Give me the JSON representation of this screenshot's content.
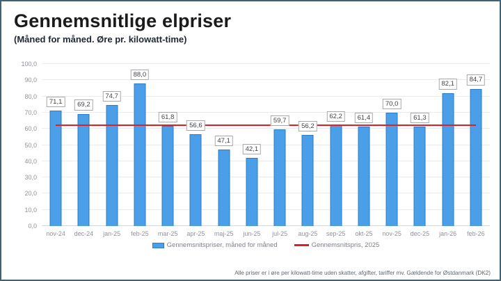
{
  "header": {
    "title": "Gennemsnitlige elpriser",
    "subtitle": "(Måned for måned. Øre pr. kilowatt-time)"
  },
  "chart_data": {
    "type": "bar",
    "title": "Gennemsnitlige elpriser",
    "subtitle": "(Måned for måned. Øre pr. kilowatt-time)",
    "categories": [
      "nov-24",
      "dec-24",
      "jan-25",
      "feb-25",
      "mar-25",
      "apr-25",
      "maj-25",
      "jun-25",
      "jul-25",
      "aug-25",
      "sep-25",
      "okt-25",
      "nov-25",
      "dec-25",
      "jan-26",
      "feb-26"
    ],
    "series": [
      {
        "name": "Gennemsnitspriser, måned for måned",
        "type": "bar",
        "values": [
          71.1,
          69.2,
          74.7,
          88.0,
          61.8,
          56.6,
          47.1,
          42.1,
          59.7,
          56.2,
          62.2,
          61.4,
          70.0,
          61.3,
          82.1,
          84.7
        ],
        "value_labels": [
          "71,1",
          "69,2",
          "74,7",
          "88,0",
          "61,8",
          "56,6",
          "47,1",
          "42,1",
          "59,7",
          "56,2",
          "62,2",
          "61,4",
          "70,0",
          "61,3",
          "82,1",
          "84,7"
        ],
        "fill_color": "#4A9FE8",
        "border_color": "#2B7CC5"
      },
      {
        "name": "Gennemsnitspris, 2025",
        "type": "line",
        "value": 61.8,
        "color": "#E02020",
        "extent": "center of first bar to center of last bar"
      }
    ],
    "ylim": [
      0,
      100
    ],
    "yticks": [
      {
        "v": 100,
        "label": "100,0"
      },
      {
        "v": 90,
        "label": "90,0"
      },
      {
        "v": 80,
        "label": "80,0"
      },
      {
        "v": 70,
        "label": "70,0"
      },
      {
        "v": 60,
        "label": "60,0"
      },
      {
        "v": 50,
        "label": "50,0"
      },
      {
        "v": 40,
        "label": "40,0"
      },
      {
        "v": 30,
        "label": "30,0"
      },
      {
        "v": 20,
        "label": "20,0"
      },
      {
        "v": 10,
        "label": "10,0"
      },
      {
        "v": 0,
        "label": "0,0"
      }
    ],
    "grid": "horizontal",
    "legend_position": "bottom-center",
    "value_labels_in_boxes": true
  },
  "footer": {
    "note": "Alle priser er i øre per kilowatt-time uden skatter, afgifter, tariffer mv. Gældende for Østdanmark (DK2)"
  },
  "colors": {
    "card_border": "#3D6374",
    "bar_fill": "#4A9FE8",
    "bar_border": "#2B7CC5",
    "average_line": "#E02020"
  }
}
